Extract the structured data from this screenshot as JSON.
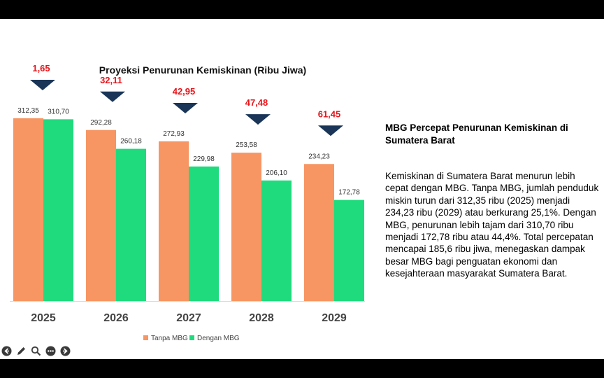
{
  "chart_data": {
    "type": "bar",
    "title": "Proyeksi Penurunan Kemiskinan (Ribu Jiwa)",
    "categories": [
      "2025",
      "2026",
      "2027",
      "2028",
      "2029"
    ],
    "series": [
      {
        "name": "Tanpa MBG",
        "color": "#F79563",
        "values": [
          312.35,
          292.28,
          272.93,
          253.58,
          234.23
        ],
        "labels": [
          "312,35",
          "292,28",
          "272,93",
          "253,58",
          "234,23"
        ]
      },
      {
        "name": "Dengan MBG",
        "color": "#1FDB7E",
        "values": [
          310.7,
          260.18,
          229.98,
          206.1,
          172.78
        ],
        "labels": [
          "310,70",
          "260,18",
          "229,98",
          "206,10",
          "172,78"
        ]
      }
    ],
    "differences": [
      1.65,
      32.11,
      42.95,
      47.48,
      61.45
    ],
    "difference_labels": [
      "1,65",
      "32,11",
      "42,95",
      "47,48",
      "61,45"
    ],
    "difference_color": "#E8141A",
    "marker_color": "#1A3557",
    "ylim": [
      0,
      312.35
    ],
    "legend_position": "bottom",
    "xlabel": "",
    "ylabel": ""
  },
  "sidebar": {
    "title": "MBG Percepat Penurunan Kemiskinan di Sumatera Barat",
    "body": "Kemiskinan di Sumatera Barat menurun lebih cepat dengan MBG. Tanpa MBG, jumlah penduduk miskin turun dari 312,35 ribu (2025) menjadi 234,23 ribu (2029) atau berkurang 25,1%. Dengan MBG, penurunan lebih tajam dari 310,70 ribu menjadi 172,78 ribu atau 44,4%. Total percepatan mencapai 185,6 ribu jiwa, menegaskan dampak besar MBG bagi penguatan ekonomi dan kesejahteraan masyarakat Sumatera Barat."
  },
  "toolbar": {
    "icons": [
      "previous-icon",
      "pen-icon",
      "zoom-icon",
      "more-icon",
      "next-icon"
    ]
  }
}
